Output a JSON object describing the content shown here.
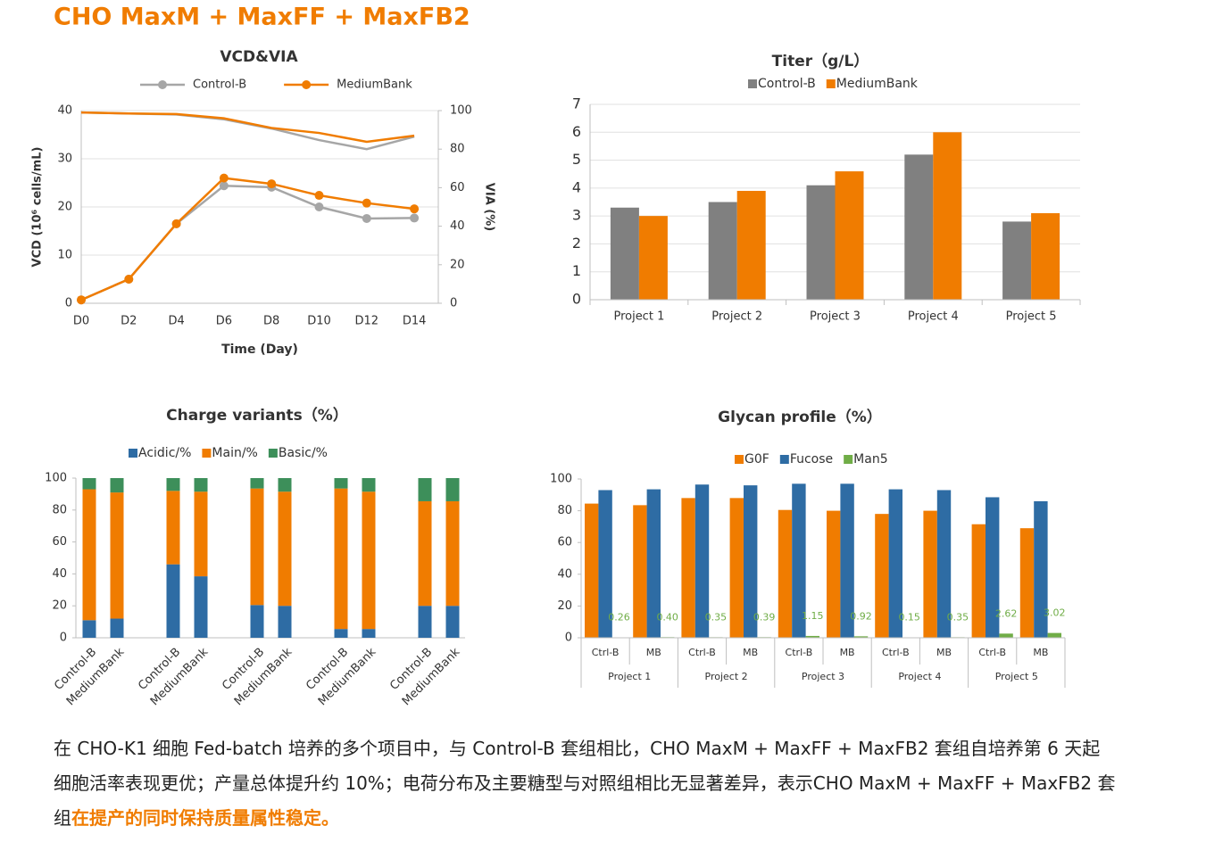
{
  "header": {
    "title": "CHO MaxM + MaxFF + MaxFB2"
  },
  "chart_data": [
    {
      "type": "line",
      "title": "VCD&VIA",
      "xlabel": "Time (Day)",
      "ylabel": "VCD (10⁶ cells/mL)",
      "y2label": "VIA (%)",
      "categories": [
        "D0",
        "D2",
        "D4",
        "D6",
        "D8",
        "D10",
        "D12",
        "D14"
      ],
      "ylim": [
        0,
        40
      ],
      "yticks": [
        0,
        10,
        20,
        30,
        40
      ],
      "y2lim": [
        0,
        100
      ],
      "y2ticks": [
        0,
        20,
        40,
        60,
        80,
        100
      ],
      "grid": true,
      "legend": "top",
      "series": [
        {
          "name": "Control-B",
          "color": "#a6a6a6",
          "marker": "circle",
          "values": [
            0.7,
            5.0,
            16.5,
            24.4,
            24.1,
            20.0,
            17.6,
            17.7
          ]
        },
        {
          "name": "MediumBank",
          "color": "#f07c00",
          "marker": "circle",
          "values": [
            0.7,
            5.0,
            16.5,
            26.0,
            24.8,
            22.4,
            20.8,
            19.6
          ]
        },
        {
          "name": "Control-B",
          "color": "#a6a6a6",
          "axis": "y2",
          "values": [
            99,
            98.5,
            98,
            95.5,
            90.7,
            84.7,
            80,
            86.5
          ]
        },
        {
          "name": "MediumBank",
          "color": "#f07c00",
          "axis": "y2",
          "values": [
            99,
            98.5,
            98.2,
            96,
            91,
            88.4,
            83.8,
            87
          ]
        }
      ]
    },
    {
      "type": "bar",
      "title": "Titer（g/L）",
      "categories": [
        "Project 1",
        "Project 2",
        "Project 3",
        "Project 4",
        "Project 5"
      ],
      "ylim": [
        0,
        7
      ],
      "yticks": [
        0,
        1,
        2,
        3,
        4,
        5,
        6,
        7
      ],
      "grid": true,
      "legend": "top",
      "series": [
        {
          "name": "Control-B",
          "color": "#808080",
          "values": [
            3.3,
            3.5,
            4.1,
            5.2,
            2.8
          ]
        },
        {
          "name": "MediumBank",
          "color": "#f07c00",
          "values": [
            3.0,
            3.9,
            4.6,
            6.0,
            3.1
          ]
        }
      ]
    },
    {
      "type": "stacked_bar",
      "title": "Charge variants（%）",
      "categories": [
        "Control-B",
        "MediumBank",
        "Control-B",
        "MediumBank",
        "Control-B",
        "MediumBank",
        "Control-B",
        "MediumBank",
        "Control-B",
        "MediumBank"
      ],
      "ylim": [
        0,
        100
      ],
      "yticks": [
        0,
        20,
        40,
        60,
        80,
        100
      ],
      "grid": false,
      "legend": "top",
      "series": [
        {
          "name": "Acidic/%",
          "color": "#2e6ca4",
          "values": [
            11,
            12,
            46,
            38.5,
            20.5,
            20,
            5.5,
            5.5,
            20,
            20
          ]
        },
        {
          "name": "Main/%",
          "color": "#f07c00",
          "values": [
            82,
            79,
            46,
            53,
            73,
            71.5,
            88,
            86,
            65.5,
            65.5
          ]
        },
        {
          "name": "Basic/%",
          "color": "#3d8f5a",
          "values": [
            7,
            9,
            8,
            8.5,
            6.5,
            8.5,
            6.5,
            8.5,
            14.5,
            14.5
          ]
        }
      ]
    },
    {
      "type": "bar",
      "title": "Glycan profile（%）",
      "categories": [
        "Ctrl-B",
        "MB",
        "Ctrl-B",
        "MB",
        "Ctrl-B",
        "MB",
        "Ctrl-B",
        "MB",
        "Ctrl-B",
        "MB"
      ],
      "groups": [
        "Project 1",
        "Project 2",
        "Project 3",
        "Project 4",
        "Project 5"
      ],
      "ylim": [
        0,
        100
      ],
      "yticks": [
        0,
        20,
        40,
        60,
        80,
        100
      ],
      "grid": false,
      "legend": "top",
      "series": [
        {
          "name": "G0F",
          "color": "#f07c00",
          "values": [
            84.5,
            83.5,
            88,
            88,
            80.5,
            80,
            78,
            80,
            71.5,
            69
          ]
        },
        {
          "name": "Fucose",
          "color": "#2e6ca4",
          "values": [
            93,
            93.5,
            96.5,
            96,
            97,
            97,
            93.5,
            93,
            88.5,
            86
          ]
        },
        {
          "name": "Man5",
          "color": "#70ad47",
          "values": [
            0.26,
            0.4,
            0.35,
            0.39,
            1.15,
            0.92,
            0.15,
            0.35,
            2.62,
            3.02
          ],
          "value_labels": [
            "0.26",
            "0.40",
            "0.35",
            "0.39",
            "1.15",
            "0.92",
            "0.15",
            "0.35",
            "2.62",
            "3.02"
          ]
        }
      ]
    }
  ],
  "paragraph": {
    "text": "在 CHO-K1 细胞 Fed-batch 培养的多个项目中，与 Control-B 套组相比，CHO MaxM + MaxFF + MaxFB2 套组自培养第 6 天起细胞活率表现更优；产量总体提升约 10%；电荷分布及主要糖型与对照组相比无显著差异，表示CHO MaxM + MaxFF + MaxFB2 套组",
    "highlight": "在提产的同时保持质量属性稳定。"
  }
}
